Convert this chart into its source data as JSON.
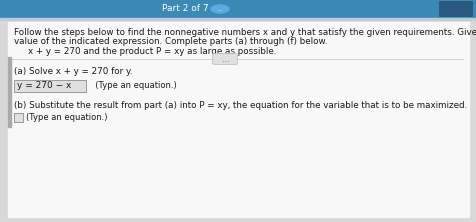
{
  "bg_top_color": "#3a8ab5",
  "bg_main_color": "#d8d8d8",
  "content_bg": "#f0f0f0",
  "white_panel_bg": "#f8f8f8",
  "top_bar_text": "Part 2 of 7",
  "header_line1": "Follow the steps below to find the nonnegative numbers x and y that satisfy the given requirements. Give the optimum",
  "header_line2": "value of the indicated expression. Complete parts (a) through (f) below.",
  "problem_text": "x + y = 270 and the product P = xy as large as possible.",
  "part_a_label": "(a) Solve x + y = 270 for y.",
  "answer_a": "y = 270 − x",
  "answer_a_note": "  (Type an equation.)",
  "part_b_label": "(b) Substitute the result from part (a) into P = xy, the equation for the variable that is to be maximized.",
  "answer_b_note": "(Type an equation.)",
  "answer_box_bg": "#e0e0e0",
  "answer_box_edge": "#999999",
  "left_accent_color": "#aaaaaa",
  "divider_color": "#cccccc",
  "ellipsis_btn_color": "#e0e0e0",
  "text_color": "#1a1a1a",
  "top_text_color": "#ffffff",
  "font_size_top": 6.5,
  "font_size_header": 6.3,
  "font_size_body": 6.3,
  "font_size_answer": 6.5
}
